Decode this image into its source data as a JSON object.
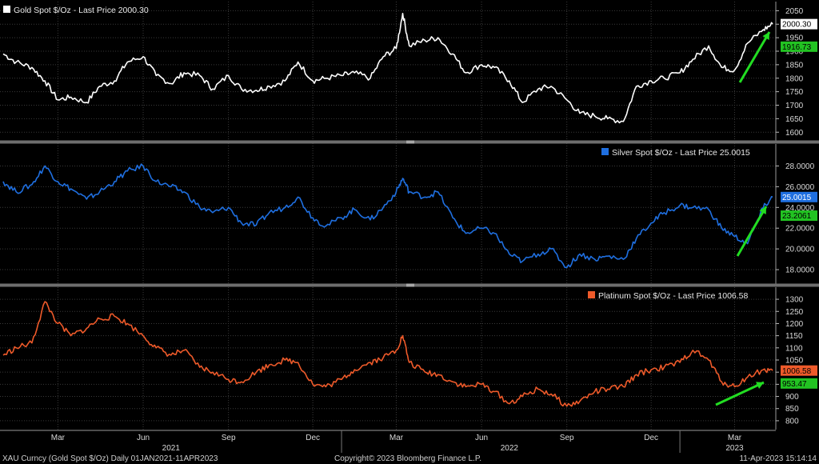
{
  "chart_data": [
    {
      "type": "line",
      "title": "Gold Spot $/Oz - Last Price 2000.30",
      "series": [
        {
          "name": "Gold Spot $/Oz",
          "color": "#ffffff",
          "x": [
            "2021-01-01",
            "2021-01-15",
            "2021-02-01",
            "2021-02-15",
            "2021-03-01",
            "2021-03-15",
            "2021-04-01",
            "2021-04-15",
            "2021-05-01",
            "2021-05-15",
            "2021-06-01",
            "2021-06-15",
            "2021-07-01",
            "2021-07-15",
            "2021-08-01",
            "2021-08-15",
            "2021-09-01",
            "2021-09-15",
            "2021-10-01",
            "2021-10-15",
            "2021-11-01",
            "2021-11-15",
            "2021-12-01",
            "2021-12-15",
            "2022-01-01",
            "2022-01-15",
            "2022-02-01",
            "2022-02-15",
            "2022-03-01",
            "2022-03-08",
            "2022-03-15",
            "2022-04-01",
            "2022-04-15",
            "2022-05-01",
            "2022-05-15",
            "2022-06-01",
            "2022-06-15",
            "2022-07-01",
            "2022-07-15",
            "2022-08-01",
            "2022-08-15",
            "2022-09-01",
            "2022-09-15",
            "2022-10-01",
            "2022-10-15",
            "2022-11-01",
            "2022-11-15",
            "2022-12-01",
            "2022-12-15",
            "2023-01-01",
            "2023-01-15",
            "2023-02-01",
            "2023-02-15",
            "2023-03-01",
            "2023-03-15",
            "2023-04-01",
            "2023-04-11"
          ],
          "values": [
            1890,
            1860,
            1840,
            1790,
            1720,
            1730,
            1710,
            1770,
            1790,
            1860,
            1880,
            1810,
            1780,
            1820,
            1810,
            1760,
            1810,
            1760,
            1755,
            1770,
            1790,
            1860,
            1790,
            1800,
            1810,
            1820,
            1800,
            1880,
            1910,
            2040,
            1920,
            1940,
            1950,
            1890,
            1820,
            1850,
            1840,
            1790,
            1710,
            1760,
            1770,
            1720,
            1670,
            1660,
            1650,
            1640,
            1770,
            1790,
            1800,
            1820,
            1870,
            1920,
            1840,
            1830,
            1930,
            1980,
            2000.3
          ]
        }
      ],
      "ylim": [
        1580,
        2060
      ],
      "yticks": [
        1600,
        1650,
        1700,
        1750,
        1800,
        1850,
        1900,
        1950,
        2000,
        2050
      ],
      "value_labels": [
        {
          "text": "2000.30",
          "value": 2000.3,
          "bg": "#ffffff",
          "fg": "#000000"
        },
        {
          "text": "1916.73",
          "value": 1916.73,
          "bg": "#22c322",
          "fg": "#000000"
        }
      ]
    },
    {
      "type": "line",
      "title": "Silver Spot $/Oz - Last Price 25.0015",
      "series": [
        {
          "name": "Silver Spot $/Oz",
          "color": "#1f6fe0",
          "x": [
            "2021-01-01",
            "2021-01-15",
            "2021-02-01",
            "2021-02-15",
            "2021-03-01",
            "2021-03-15",
            "2021-04-01",
            "2021-04-15",
            "2021-05-01",
            "2021-05-15",
            "2021-06-01",
            "2021-06-15",
            "2021-07-01",
            "2021-07-15",
            "2021-08-01",
            "2021-08-15",
            "2021-09-01",
            "2021-09-15",
            "2021-10-01",
            "2021-10-15",
            "2021-11-01",
            "2021-11-15",
            "2021-12-01",
            "2021-12-15",
            "2022-01-01",
            "2022-01-15",
            "2022-02-01",
            "2022-02-15",
            "2022-03-01",
            "2022-03-08",
            "2022-03-15",
            "2022-04-01",
            "2022-04-15",
            "2022-05-01",
            "2022-05-15",
            "2022-06-01",
            "2022-06-15",
            "2022-07-01",
            "2022-07-15",
            "2022-08-01",
            "2022-08-15",
            "2022-09-01",
            "2022-09-15",
            "2022-10-01",
            "2022-10-15",
            "2022-11-01",
            "2022-11-15",
            "2022-12-01",
            "2022-12-15",
            "2023-01-01",
            "2023-01-15",
            "2023-02-01",
            "2023-02-15",
            "2023-03-01",
            "2023-03-15",
            "2023-04-01",
            "2023-04-11"
          ],
          "values": [
            26.5,
            25.5,
            26.2,
            28.0,
            26.5,
            25.8,
            24.8,
            25.5,
            26.5,
            27.5,
            28.0,
            26.5,
            26.0,
            25.5,
            24.0,
            23.5,
            24.0,
            22.5,
            22.3,
            23.5,
            24.0,
            25.0,
            23.0,
            22.2,
            23.0,
            23.8,
            22.8,
            24.0,
            25.5,
            26.8,
            25.5,
            25.0,
            25.5,
            23.0,
            21.5,
            22.0,
            21.5,
            19.5,
            18.8,
            19.5,
            20.0,
            18.2,
            19.5,
            19.0,
            19.3,
            19.0,
            21.0,
            22.5,
            23.5,
            24.2,
            24.0,
            23.8,
            22.0,
            21.2,
            20.5,
            24.0,
            25.0015
          ]
        }
      ],
      "ylim": [
        17,
        29.5
      ],
      "yticks": [
        18,
        20,
        22,
        24,
        26,
        28
      ],
      "ytick_labels": [
        "18.0000",
        "20.0000",
        "22.0000",
        "24.0000",
        "26.0000",
        "28.0000"
      ],
      "value_labels": [
        {
          "text": "25.0015",
          "value": 25.0015,
          "bg": "#1f6fe0",
          "fg": "#ffffff"
        },
        {
          "text": "23.2061",
          "value": 23.2061,
          "bg": "#22c322",
          "fg": "#000000"
        }
      ]
    },
    {
      "type": "line",
      "title": "Platinum Spot $/Oz - Last Price 1006.58",
      "series": [
        {
          "name": "Platinum Spot $/Oz",
          "color": "#ee5a2a",
          "x": [
            "2021-01-01",
            "2021-01-15",
            "2021-02-01",
            "2021-02-15",
            "2021-03-01",
            "2021-03-15",
            "2021-04-01",
            "2021-04-15",
            "2021-05-01",
            "2021-05-15",
            "2021-06-01",
            "2021-06-15",
            "2021-07-01",
            "2021-07-15",
            "2021-08-01",
            "2021-08-15",
            "2021-09-01",
            "2021-09-15",
            "2021-10-01",
            "2021-10-15",
            "2021-11-01",
            "2021-11-15",
            "2021-12-01",
            "2021-12-15",
            "2022-01-01",
            "2022-01-15",
            "2022-02-01",
            "2022-02-15",
            "2022-03-01",
            "2022-03-08",
            "2022-03-15",
            "2022-04-01",
            "2022-04-15",
            "2022-05-01",
            "2022-05-15",
            "2022-06-01",
            "2022-06-15",
            "2022-07-01",
            "2022-07-15",
            "2022-08-01",
            "2022-08-15",
            "2022-09-01",
            "2022-09-15",
            "2022-10-01",
            "2022-10-15",
            "2022-11-01",
            "2022-11-15",
            "2022-12-01",
            "2022-12-15",
            "2023-01-01",
            "2023-01-15",
            "2023-02-01",
            "2023-02-15",
            "2023-03-01",
            "2023-03-15",
            "2023-04-01",
            "2023-04-11"
          ],
          "values": [
            1070,
            1100,
            1120,
            1290,
            1200,
            1150,
            1180,
            1220,
            1230,
            1200,
            1150,
            1100,
            1070,
            1090,
            1020,
            1000,
            970,
            960,
            1000,
            1030,
            1050,
            1040,
            950,
            940,
            970,
            1010,
            1040,
            1060,
            1090,
            1150,
            1040,
            1000,
            990,
            960,
            940,
            950,
            920,
            870,
            900,
            930,
            910,
            860,
            880,
            920,
            930,
            940,
            990,
            1010,
            1020,
            1040,
            1090,
            1050,
            960,
            940,
            980,
            1010,
            1006.58
          ]
        }
      ],
      "ylim": [
        780,
        1320
      ],
      "yticks": [
        800,
        850,
        900,
        950,
        1000,
        1050,
        1100,
        1150,
        1200,
        1250,
        1300
      ],
      "value_labels": [
        {
          "text": "1006.58",
          "value": 1006.58,
          "bg": "#ee5a2a",
          "fg": "#000000"
        },
        {
          "text": "953.47",
          "value": 953.47,
          "bg": "#22c322",
          "fg": "#000000"
        }
      ]
    }
  ],
  "x_axis": {
    "range": [
      "2021-01-01",
      "2023-04-11"
    ],
    "month_labels": [
      {
        "text": "Mar",
        "date": "2021-03-01"
      },
      {
        "text": "Jun",
        "date": "2021-06-01"
      },
      {
        "text": "Sep",
        "date": "2021-09-01"
      },
      {
        "text": "Dec",
        "date": "2021-12-01"
      },
      {
        "text": "Mar",
        "date": "2022-03-01"
      },
      {
        "text": "Jun",
        "date": "2022-06-01"
      },
      {
        "text": "Sep",
        "date": "2022-09-01"
      },
      {
        "text": "Dec",
        "date": "2022-12-01"
      },
      {
        "text": "Mar",
        "date": "2023-03-01"
      }
    ],
    "year_labels": [
      {
        "text": "2021",
        "date": "2021-07-01"
      },
      {
        "text": "2022",
        "date": "2022-07-01"
      },
      {
        "text": "2023",
        "date": "2023-03-01"
      }
    ]
  },
  "annotations": {
    "arrow_color": "#22dd22"
  },
  "footer": {
    "left": "XAU Curncy (Gold Spot  $/Oz)  Daily 01JAN2021-11APR2023",
    "center": "Copyright© 2023 Bloomberg Finance L.P.",
    "right": "11-Apr-2023 15:14:14"
  }
}
